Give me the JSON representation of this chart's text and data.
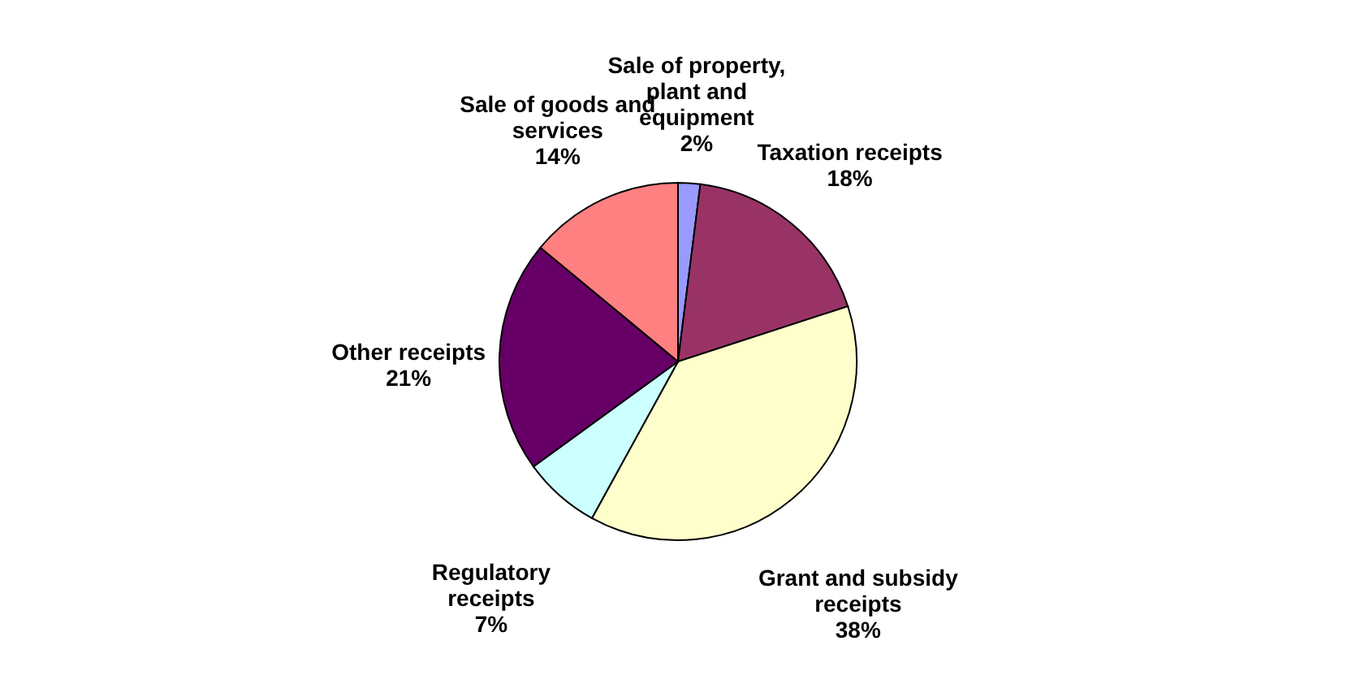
{
  "chart_data": {
    "type": "pie",
    "categories": [
      "Sale of property, plant and equipment",
      "Taxation receipts",
      "Grant and subsidy receipts",
      "Regulatory receipts",
      "Other receipts",
      "Sale of goods and services"
    ],
    "values": [
      2,
      18,
      38,
      7,
      21,
      14
    ],
    "colors": [
      "#9999ff",
      "#993366",
      "#ffffcc",
      "#ccffff",
      "#660066",
      "#ff8080"
    ],
    "value_labels": [
      "2%",
      "18%",
      "38%",
      "7%",
      "21%",
      "14%"
    ],
    "legend": false
  }
}
